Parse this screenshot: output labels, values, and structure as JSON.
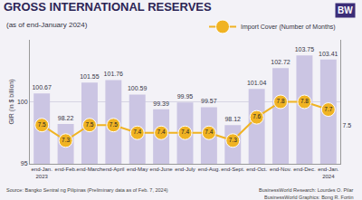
{
  "chart_data": {
    "type": "bar",
    "title": "GROSS INTERNATIONAL RESERVES",
    "subtitle": "(as of end-January 2024)",
    "y_label": "GIR (in $ billion)",
    "categories": [
      "end-Jan.\n2023",
      "end-Feb.",
      "end-March",
      "end-April",
      "end-May",
      "end-June",
      "end-July",
      "end-Aug.",
      "end-Sept.",
      "end-Oct.",
      "end-Nov.",
      "end-Dec.",
      "end-Jan.\n2024"
    ],
    "series": [
      {
        "type": "bar",
        "color": "#cbc5e3",
        "values": [
          100.67,
          98.22,
          101.55,
          101.76,
          100.59,
          99.39,
          99.95,
          99.57,
          98.12,
          101.04,
          102.72,
          103.75,
          103.41
        ]
      },
      {
        "name": "Import Cover (Number of Months)",
        "type": "line",
        "axis": "y2",
        "color": "#f0b323",
        "marker": "circle",
        "values": [
          7.5,
          7.3,
          7.5,
          7.5,
          7.4,
          7.4,
          7.4,
          7.4,
          7.3,
          7.6,
          7.8,
          7.8,
          7.7
        ]
      }
    ],
    "ylim": [
      95,
      105
    ],
    "yticks": [
      95,
      100
    ],
    "y2lim": [
      7.0,
      8.6
    ],
    "y2ticks": [
      7.5
    ],
    "grid": true,
    "legend": "top right",
    "data_labels": true,
    "annotations": [
      "BW",
      "Source: Bangko Sentral ng Pilipinas (Preliminary data as of Feb. 7, 2024)",
      "BusinessWorld Research: Lourdes O. Pilar",
      "BusinessWorld Graphics: Bong R. Fortin"
    ]
  }
}
